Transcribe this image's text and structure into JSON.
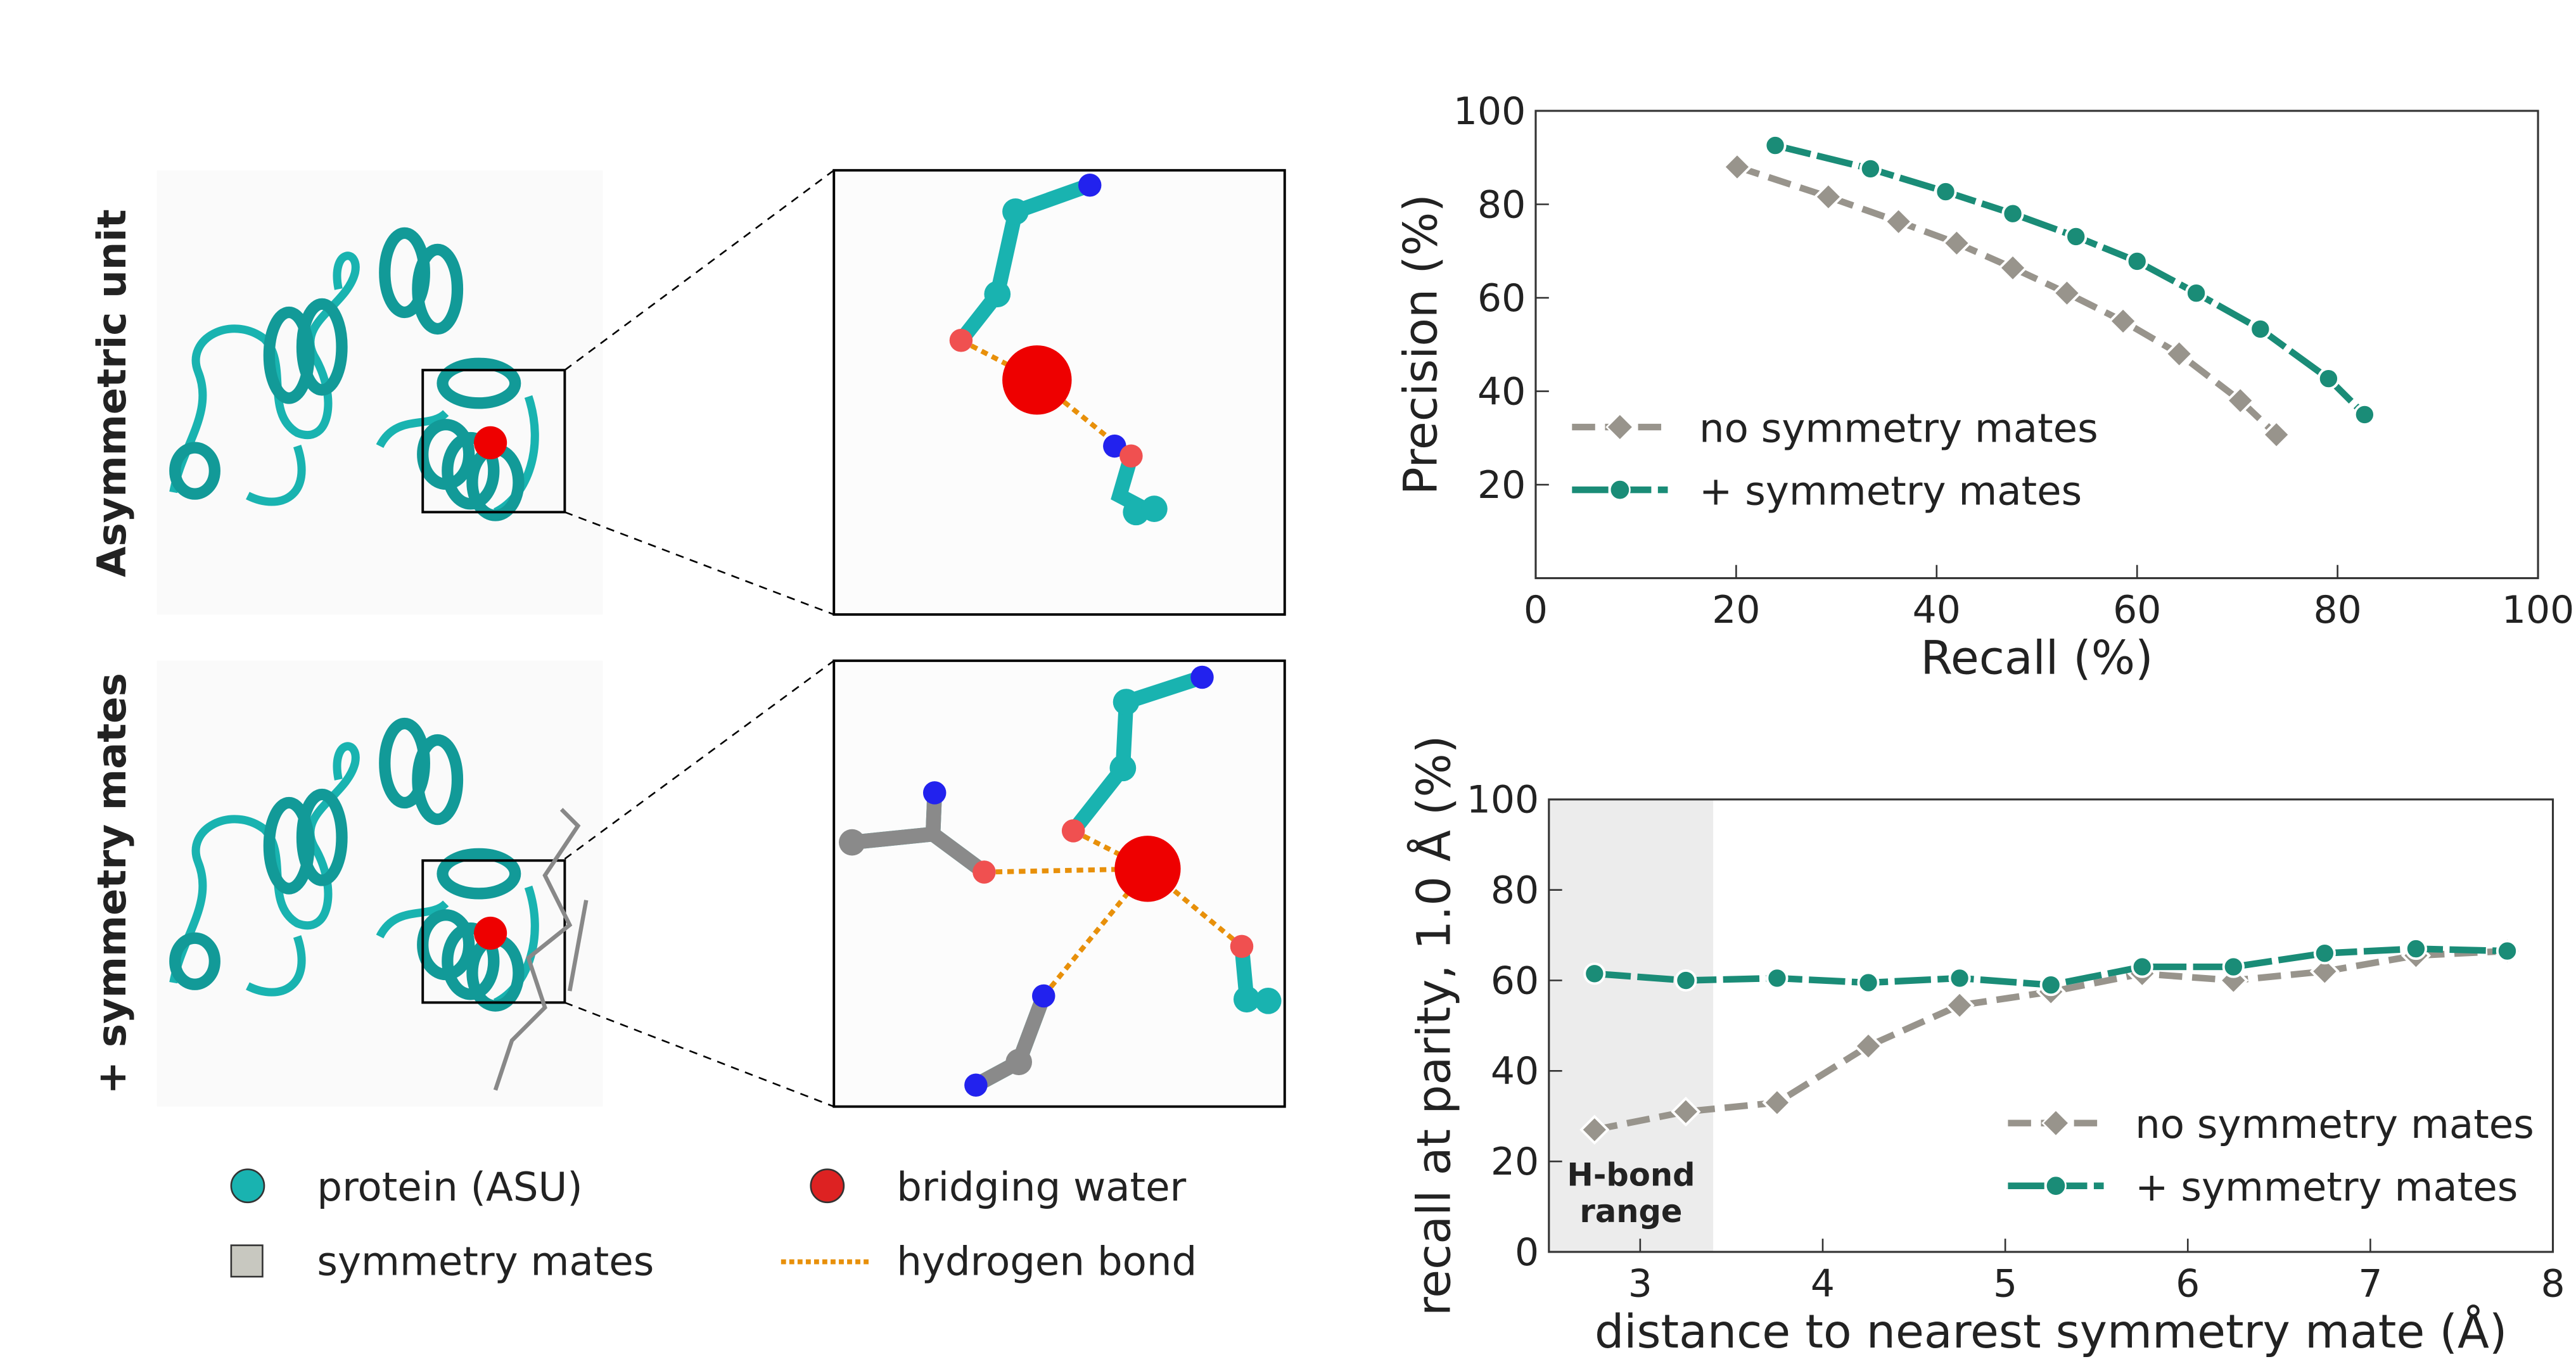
{
  "figure": {
    "rows": [
      {
        "label": "Asymmetric unit"
      },
      {
        "label": "+ symmetry mates"
      }
    ],
    "legend": [
      "protein (ASU)",
      "bridging water",
      "symmetry mates",
      "hydrogen bond"
    ]
  },
  "chart_data": [
    {
      "type": "line",
      "xlabel": "Recall (%)",
      "ylabel": "Precision (%)",
      "xlim": [
        0,
        100
      ],
      "ylim": [
        0,
        100
      ],
      "xticks": [
        0,
        20,
        40,
        60,
        80,
        100
      ],
      "yticks": [
        20,
        40,
        60,
        80,
        100
      ],
      "legend": "center left",
      "series": [
        {
          "name": "no symmetry mates",
          "color": "#98948c",
          "marker": "diamond",
          "x": [
            20.1,
            29.2,
            36.2,
            42,
            47.6,
            53,
            58.6,
            64.2,
            70.3,
            73.9
          ],
          "values": [
            88,
            81.6,
            76.3,
            71.7,
            66.4,
            61,
            55,
            48,
            38,
            30.7
          ]
        },
        {
          "name": "+ symmetry mates",
          "color": "#1a8c77",
          "marker": "circle",
          "x": [
            23.9,
            33.4,
            40.9,
            47.6,
            53.9,
            60,
            65.9,
            72.3,
            79.1,
            82.7
          ],
          "values": [
            92.6,
            87.6,
            82.7,
            78,
            73.1,
            67.8,
            61,
            53.3,
            42.7,
            35
          ]
        }
      ]
    },
    {
      "type": "line",
      "xlabel": "distance to nearest symmetry mate  (Å)",
      "ylabel": "recall at parity, 1.0 Å (%)",
      "xlim": [
        2.5,
        8
      ],
      "ylim": [
        0,
        100
      ],
      "xticks": [
        3,
        4,
        5,
        6,
        7,
        8
      ],
      "yticks": [
        0,
        20,
        40,
        60,
        80,
        100
      ],
      "legend": "lower right",
      "shade": {
        "x": [
          2.5,
          3.4
        ],
        "label": [
          "H-bond",
          "range"
        ]
      },
      "series": [
        {
          "name": "no symmetry mates",
          "color": "#98948c",
          "marker": "diamond",
          "x": [
            2.75,
            3.25,
            3.75,
            4.25,
            4.75,
            5.25,
            5.75,
            6.25,
            6.75,
            7.25,
            7.75
          ],
          "values": [
            27,
            31,
            33,
            45.5,
            54.5,
            57.5,
            61.5,
            60,
            62,
            65.5,
            66.5
          ]
        },
        {
          "name": "+ symmetry mates",
          "color": "#1a8c77",
          "marker": "circle",
          "x": [
            2.75,
            3.25,
            3.75,
            4.25,
            4.75,
            5.25,
            5.75,
            6.25,
            6.75,
            7.25,
            7.75
          ],
          "values": [
            61.5,
            60,
            60.5,
            59.5,
            60.5,
            59,
            63,
            63,
            66,
            67,
            66.5
          ]
        }
      ]
    }
  ]
}
